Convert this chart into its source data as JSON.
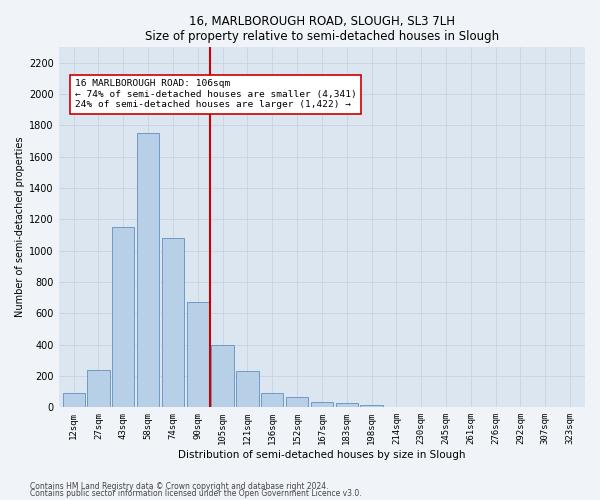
{
  "title": "16, MARLBOROUGH ROAD, SLOUGH, SL3 7LH",
  "subtitle": "Size of property relative to semi-detached houses in Slough",
  "xlabel": "Distribution of semi-detached houses by size in Slough",
  "ylabel": "Number of semi-detached properties",
  "categories": [
    "12sqm",
    "27sqm",
    "43sqm",
    "58sqm",
    "74sqm",
    "90sqm",
    "105sqm",
    "121sqm",
    "136sqm",
    "152sqm",
    "167sqm",
    "183sqm",
    "198sqm",
    "214sqm",
    "230sqm",
    "245sqm",
    "261sqm",
    "276sqm",
    "292sqm",
    "307sqm",
    "323sqm"
  ],
  "values": [
    90,
    240,
    1150,
    1750,
    1080,
    670,
    400,
    230,
    90,
    65,
    35,
    25,
    18,
    0,
    0,
    0,
    0,
    0,
    0,
    0,
    0
  ],
  "bar_color": "#b8cfe8",
  "bar_edge_color": "#6090c0",
  "line_color": "#cc0000",
  "annotation_text": "16 MARLBOROUGH ROAD: 106sqm\n← 74% of semi-detached houses are smaller (4,341)\n24% of semi-detached houses are larger (1,422) →",
  "annotation_box_color": "#ffffff",
  "annotation_box_edge": "#cc0000",
  "ylim": [
    0,
    2300
  ],
  "yticks": [
    0,
    200,
    400,
    600,
    800,
    1000,
    1200,
    1400,
    1600,
    1800,
    2000,
    2200
  ],
  "grid_color": "#c8d4e4",
  "footnote1": "Contains HM Land Registry data © Crown copyright and database right 2024.",
  "footnote2": "Contains public sector information licensed under the Open Government Licence v3.0.",
  "bg_color": "#dce6f0",
  "plot_bg_color": "#f0f4f8"
}
